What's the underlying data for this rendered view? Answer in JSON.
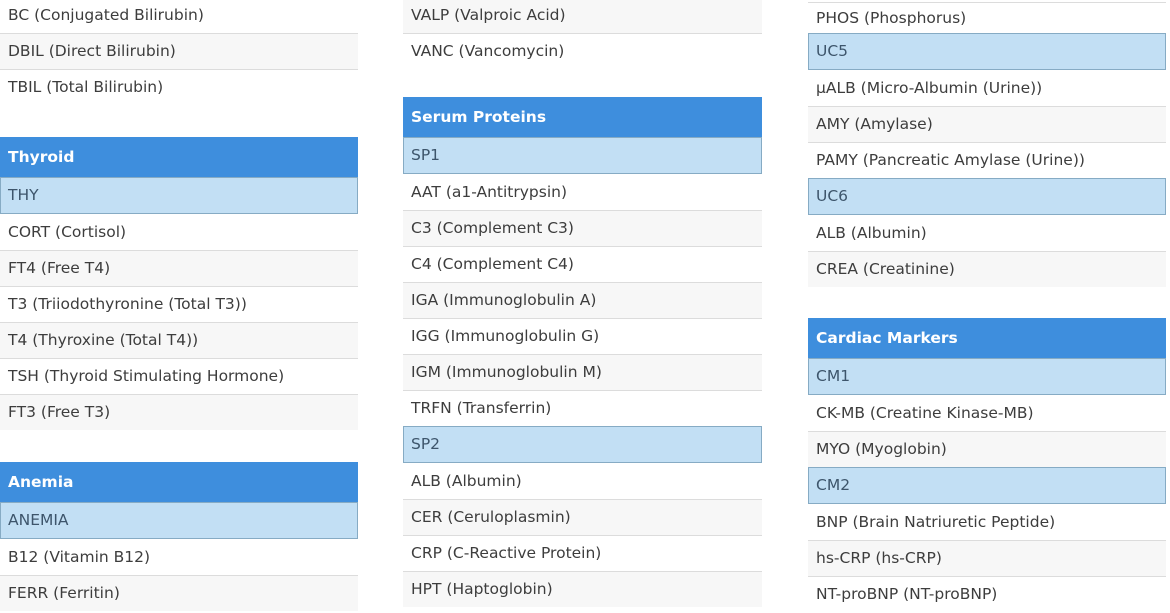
{
  "colors": {
    "header_bg": "#3e8edd",
    "header_text": "#ffffff",
    "panel_bg": "#c2dff4",
    "panel_border": "#86abc4",
    "panel_text": "#3d556b",
    "item_text": "#3d3d3d",
    "alt_bg": "#f7f7f7",
    "row_border": "#dcdcdc"
  },
  "columns": [
    {
      "id": "left",
      "groups": [
        {
          "header": null,
          "rows": [
            {
              "kind": "item",
              "label": "BC (Conjugated Bilirubin)"
            },
            {
              "kind": "item",
              "label": "DBIL (Direct Bilirubin)"
            },
            {
              "kind": "item",
              "label": "TBIL (Total Bilirubin)"
            }
          ]
        },
        {
          "header": "Thyroid",
          "rows": [
            {
              "kind": "panel",
              "label": "THY"
            },
            {
              "kind": "item",
              "label": "CORT (Cortisol)"
            },
            {
              "kind": "item",
              "label": "FT4 (Free T4)"
            },
            {
              "kind": "item",
              "label": "T3 (Triiodothyronine (Total T3))"
            },
            {
              "kind": "item",
              "label": "T4 (Thyroxine (Total T4))"
            },
            {
              "kind": "item",
              "label": "TSH (Thyroid Stimulating Hormone)"
            },
            {
              "kind": "item",
              "label": "FT3 (Free T3)"
            }
          ]
        },
        {
          "header": "Anemia",
          "rows": [
            {
              "kind": "panel",
              "label": "ANEMIA"
            },
            {
              "kind": "item",
              "label": "B12 (Vitamin B12)"
            },
            {
              "kind": "item",
              "label": "FERR (Ferritin)"
            }
          ]
        }
      ]
    },
    {
      "id": "middle",
      "groups": [
        {
          "header": null,
          "first_shade": "gray",
          "rows": [
            {
              "kind": "item",
              "label": "VALP (Valproic Acid)"
            },
            {
              "kind": "item",
              "label": "VANC (Vancomycin)"
            }
          ]
        },
        {
          "header": "Serum Proteins",
          "rows": [
            {
              "kind": "panel",
              "label": "SP1"
            },
            {
              "kind": "item",
              "label": "AAT (a1-Antitrypsin)"
            },
            {
              "kind": "item",
              "label": "C3 (Complement C3)"
            },
            {
              "kind": "item",
              "label": "C4 (Complement C4)"
            },
            {
              "kind": "item",
              "label": "IGA (Immunoglobulin A)"
            },
            {
              "kind": "item",
              "label": "IGG (Immunoglobulin G)"
            },
            {
              "kind": "item",
              "label": "IGM (Immunoglobulin M)"
            },
            {
              "kind": "item",
              "label": "TRFN (Transferrin)"
            },
            {
              "kind": "panel",
              "label": "SP2"
            },
            {
              "kind": "item",
              "label": "ALB (Albumin)"
            },
            {
              "kind": "item",
              "label": "CER (Ceruloplasmin)"
            },
            {
              "kind": "item",
              "label": "CRP (C-Reactive Protein)"
            },
            {
              "kind": "item",
              "label": "HPT (Haptoglobin)"
            }
          ]
        }
      ]
    },
    {
      "id": "right",
      "groups": [
        {
          "header": null,
          "rows": [
            {
              "kind": "item",
              "label": "PHOS (Phosphorus)"
            },
            {
              "kind": "panel",
              "label": "UC5"
            },
            {
              "kind": "item",
              "label": "µALB (Micro-Albumin (Urine))"
            },
            {
              "kind": "item",
              "label": "AMY (Amylase)"
            },
            {
              "kind": "item",
              "label": "PAMY (Pancreatic Amylase (Urine))"
            },
            {
              "kind": "panel",
              "label": "UC6"
            },
            {
              "kind": "item",
              "label": "ALB (Albumin)"
            },
            {
              "kind": "item",
              "label": "CREA (Creatinine)"
            }
          ]
        },
        {
          "header": "Cardiac Markers",
          "rows": [
            {
              "kind": "panel",
              "label": "CM1"
            },
            {
              "kind": "item",
              "label": "CK-MB (Creatine Kinase-MB)"
            },
            {
              "kind": "item",
              "label": "MYO (Myoglobin)"
            },
            {
              "kind": "panel",
              "label": "CM2"
            },
            {
              "kind": "item",
              "label": "BNP (Brain Natriuretic Peptide)"
            },
            {
              "kind": "item",
              "label": "hs-CRP (hs-CRP)"
            },
            {
              "kind": "item",
              "label": "NT-proBNP (NT-proBNP)"
            }
          ]
        }
      ]
    }
  ]
}
